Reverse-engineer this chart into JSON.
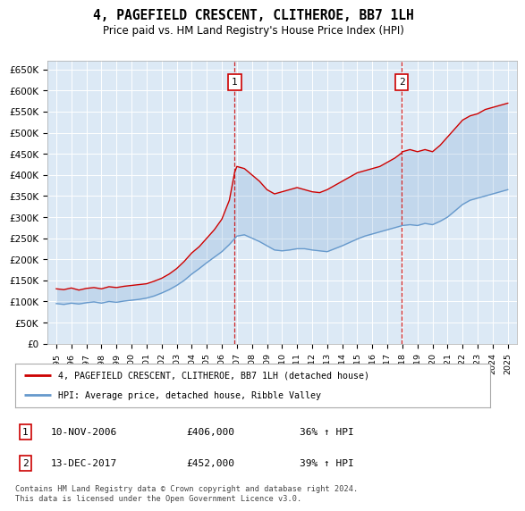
{
  "title": "4, PAGEFIELD CRESCENT, CLITHEROE, BB7 1LH",
  "subtitle": "Price paid vs. HM Land Registry's House Price Index (HPI)",
  "legend_label_red": "4, PAGEFIELD CRESCENT, CLITHEROE, BB7 1LH (detached house)",
  "legend_label_blue": "HPI: Average price, detached house, Ribble Valley",
  "transaction1_date": "10-NOV-2006",
  "transaction1_price": "£406,000",
  "transaction1_hpi": "36% ↑ HPI",
  "transaction2_date": "13-DEC-2017",
  "transaction2_price": "£452,000",
  "transaction2_hpi": "39% ↑ HPI",
  "footer": "Contains HM Land Registry data © Crown copyright and database right 2024.\nThis data is licensed under the Open Government Licence v3.0.",
  "yticks": [
    0,
    50000,
    100000,
    150000,
    200000,
    250000,
    300000,
    350000,
    400000,
    450000,
    500000,
    550000,
    600000,
    650000
  ],
  "ytick_labels": [
    "£0",
    "£50K",
    "£100K",
    "£150K",
    "£200K",
    "£250K",
    "£300K",
    "£350K",
    "£400K",
    "£450K",
    "£500K",
    "£550K",
    "£600K",
    "£650K"
  ],
  "bg_color": "#dce9f5",
  "line_color_red": "#cc0000",
  "line_color_blue": "#6699cc",
  "vline_color": "#cc0000",
  "transaction1_x": 2006.85,
  "transaction2_x": 2017.95,
  "red_line_x": [
    1995.0,
    1995.5,
    1996.0,
    1996.5,
    1997.0,
    1997.5,
    1998.0,
    1998.5,
    1999.0,
    1999.5,
    2000.0,
    2000.5,
    2001.0,
    2001.5,
    2002.0,
    2002.5,
    2003.0,
    2003.5,
    2004.0,
    2004.5,
    2005.0,
    2005.5,
    2006.0,
    2006.5,
    2006.85,
    2007.0,
    2007.5,
    2008.0,
    2008.5,
    2009.0,
    2009.5,
    2010.0,
    2010.5,
    2011.0,
    2011.5,
    2012.0,
    2012.5,
    2013.0,
    2013.5,
    2014.0,
    2014.5,
    2015.0,
    2015.5,
    2016.0,
    2016.5,
    2017.0,
    2017.5,
    2017.95,
    2018.0,
    2018.5,
    2019.0,
    2019.5,
    2020.0,
    2020.5,
    2021.0,
    2021.5,
    2022.0,
    2022.5,
    2023.0,
    2023.5,
    2024.0,
    2024.5,
    2025.0
  ],
  "red_line_y": [
    130000,
    128000,
    132000,
    127000,
    131000,
    133000,
    130000,
    135000,
    133000,
    136000,
    138000,
    140000,
    142000,
    148000,
    155000,
    165000,
    178000,
    195000,
    215000,
    230000,
    250000,
    270000,
    295000,
    340000,
    406000,
    420000,
    415000,
    400000,
    385000,
    365000,
    355000,
    360000,
    365000,
    370000,
    365000,
    360000,
    358000,
    365000,
    375000,
    385000,
    395000,
    405000,
    410000,
    415000,
    420000,
    430000,
    440000,
    452000,
    455000,
    460000,
    455000,
    460000,
    455000,
    470000,
    490000,
    510000,
    530000,
    540000,
    545000,
    555000,
    560000,
    565000,
    570000
  ],
  "blue_line_x": [
    1995.0,
    1995.5,
    1996.0,
    1996.5,
    1997.0,
    1997.5,
    1998.0,
    1998.5,
    1999.0,
    1999.5,
    2000.0,
    2000.5,
    2001.0,
    2001.5,
    2002.0,
    2002.5,
    2003.0,
    2003.5,
    2004.0,
    2004.5,
    2005.0,
    2005.5,
    2006.0,
    2006.5,
    2007.0,
    2007.5,
    2008.0,
    2008.5,
    2009.0,
    2009.5,
    2010.0,
    2010.5,
    2011.0,
    2011.5,
    2012.0,
    2012.5,
    2013.0,
    2013.5,
    2014.0,
    2014.5,
    2015.0,
    2015.5,
    2016.0,
    2016.5,
    2017.0,
    2017.5,
    2018.0,
    2018.5,
    2019.0,
    2019.5,
    2020.0,
    2020.5,
    2021.0,
    2021.5,
    2022.0,
    2022.5,
    2023.0,
    2023.5,
    2024.0,
    2024.5,
    2025.0
  ],
  "blue_line_y": [
    95000,
    93000,
    96000,
    94000,
    97000,
    99000,
    96000,
    100000,
    98000,
    101000,
    103000,
    105000,
    108000,
    113000,
    120000,
    128000,
    138000,
    150000,
    165000,
    178000,
    192000,
    205000,
    218000,
    235000,
    255000,
    258000,
    250000,
    242000,
    232000,
    222000,
    220000,
    222000,
    225000,
    225000,
    222000,
    220000,
    218000,
    225000,
    232000,
    240000,
    248000,
    255000,
    260000,
    265000,
    270000,
    275000,
    280000,
    282000,
    280000,
    285000,
    282000,
    290000,
    300000,
    315000,
    330000,
    340000,
    345000,
    350000,
    355000,
    360000,
    365000
  ]
}
